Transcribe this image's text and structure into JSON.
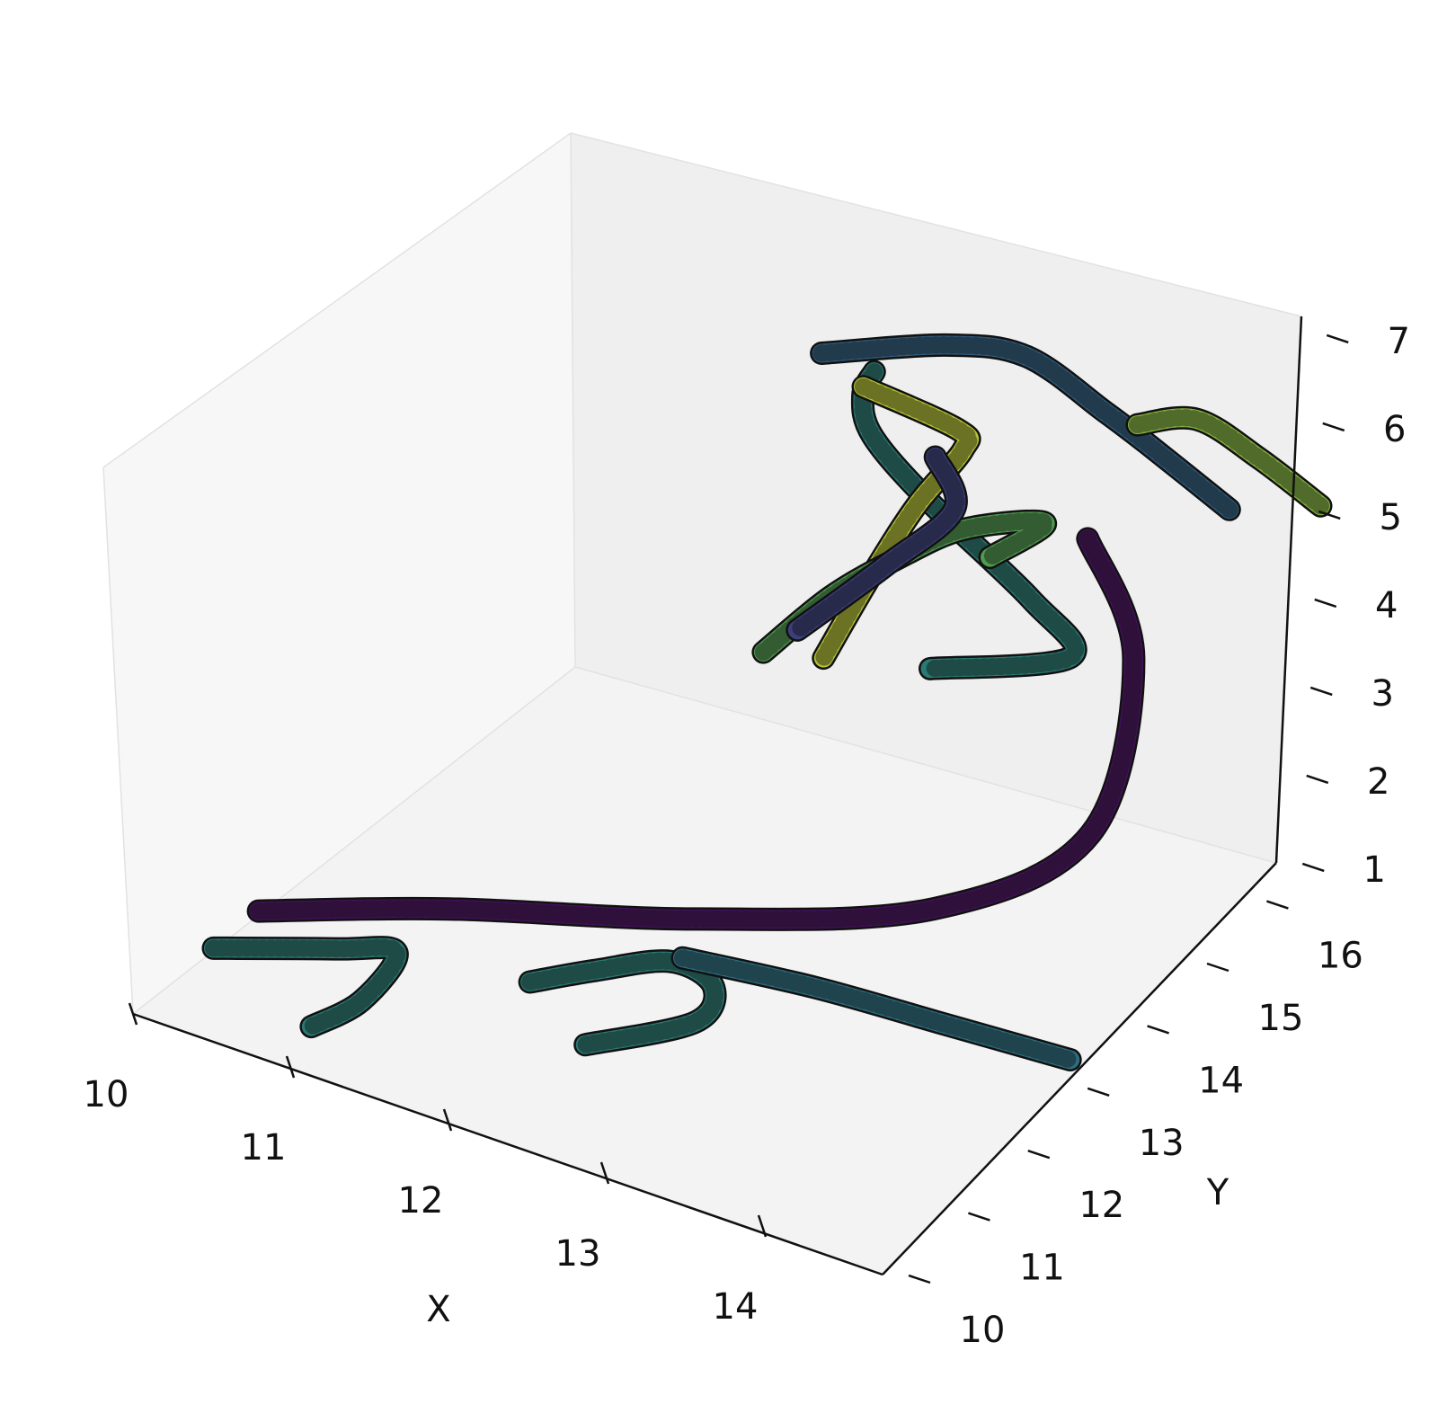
{
  "chart_data": {
    "type": "3d-tubes",
    "title": "",
    "xlabel": "X",
    "ylabel": "Y",
    "zlabel": "",
    "xlim": [
      10,
      15
    ],
    "ylim": [
      10,
      16.6
    ],
    "zlim": [
      1,
      7.2
    ],
    "x_ticks": [
      "10",
      "11",
      "12",
      "13",
      "14"
    ],
    "y_ticks": [
      "10",
      "11",
      "12",
      "13",
      "14",
      "15",
      "16"
    ],
    "z_ticks": [
      "1",
      "2",
      "3",
      "4",
      "5",
      "6",
      "7"
    ],
    "grid": false,
    "colormap": "viridis",
    "colors": {
      "dark_purple": "#45105d",
      "indigo": "#3b3f7a",
      "dark_blue": "#2f5b7d",
      "blue_teal": "#2b6e80",
      "teal": "#2a7a74",
      "green": "#4f9a4e",
      "light_green": "#86b53e",
      "yellow_green": "#b5c234"
    },
    "series": [
      {
        "color": "dark_purple",
        "points": [
          [
            10.4,
            11.0,
            1.7
          ],
          [
            11.3,
            11.8,
            1.7
          ],
          [
            12.5,
            12.8,
            1.6
          ],
          [
            13.6,
            13.9,
            1.6
          ],
          [
            14.2,
            14.9,
            2.1
          ],
          [
            14.1,
            15.8,
            3.4
          ],
          [
            13.6,
            16.3,
            4.1
          ]
        ]
      },
      {
        "color": "teal",
        "points": [
          [
            10.2,
            10.8,
            1.3
          ],
          [
            10.8,
            11.3,
            1.3
          ],
          [
            11.1,
            11.5,
            1.3
          ],
          [
            11.0,
            11.2,
            0.9
          ],
          [
            10.8,
            10.9,
            0.7
          ]
        ]
      },
      {
        "color": "teal",
        "points": [
          [
            11.8,
            11.9,
            1.1
          ],
          [
            12.1,
            12.2,
            1.2
          ],
          [
            12.5,
            12.4,
            1.4
          ],
          [
            12.7,
            12.6,
            1.1
          ],
          [
            12.7,
            12.3,
            0.9
          ],
          [
            12.2,
            11.8,
            0.7
          ]
        ]
      },
      {
        "color": "blue_teal",
        "points": [
          [
            12.5,
            12.6,
            1.3
          ],
          [
            13.2,
            13.0,
            1.1
          ],
          [
            13.9,
            13.3,
            0.9
          ],
          [
            14.6,
            13.6,
            0.7
          ]
        ]
      },
      {
        "color": "dark_blue",
        "points": [
          [
            12.2,
            15.4,
            6.0
          ],
          [
            12.8,
            15.9,
            6.1
          ],
          [
            13.2,
            16.2,
            6.0
          ],
          [
            13.6,
            16.5,
            5.4
          ],
          [
            13.8,
            16.8,
            4.9
          ],
          [
            14.3,
            16.8,
            4.5
          ]
        ]
      },
      {
        "color": "teal",
        "points": [
          [
            12.5,
            15.5,
            5.9
          ],
          [
            12.4,
            15.6,
            5.5
          ],
          [
            12.4,
            15.8,
            4.9
          ],
          [
            12.7,
            16.0,
            4.2
          ],
          [
            13.3,
            16.2,
            3.3
          ],
          [
            13.6,
            16.1,
            2.9
          ],
          [
            12.9,
            15.6,
            2.7
          ]
        ]
      },
      {
        "color": "yellow_green",
        "points": [
          [
            12.4,
            15.6,
            5.6
          ],
          [
            12.9,
            15.9,
            5.2
          ],
          [
            12.9,
            16.0,
            4.9
          ],
          [
            12.7,
            15.8,
            4.3
          ],
          [
            12.5,
            15.6,
            3.5
          ],
          [
            12.3,
            15.4,
            2.6
          ]
        ]
      },
      {
        "color": "green",
        "points": [
          [
            12.1,
            14.9,
            2.9
          ],
          [
            12.4,
            15.2,
            3.5
          ],
          [
            12.7,
            15.5,
            3.9
          ],
          [
            13.0,
            15.8,
            4.2
          ],
          [
            13.4,
            16.1,
            4.3
          ],
          [
            13.1,
            16.0,
            3.8
          ]
        ]
      },
      {
        "color": "indigo",
        "points": [
          [
            12.8,
            15.8,
            4.9
          ],
          [
            12.9,
            15.9,
            4.3
          ],
          [
            12.6,
            15.6,
            3.7
          ],
          [
            12.2,
            15.2,
            3.0
          ]
        ]
      },
      {
        "color": "light_green",
        "points": [
          [
            13.7,
            16.8,
            5.1
          ],
          [
            14.0,
            17.0,
            5.2
          ],
          [
            14.4,
            17.0,
            5.0
          ],
          [
            14.8,
            17.0,
            4.7
          ]
        ]
      }
    ]
  }
}
